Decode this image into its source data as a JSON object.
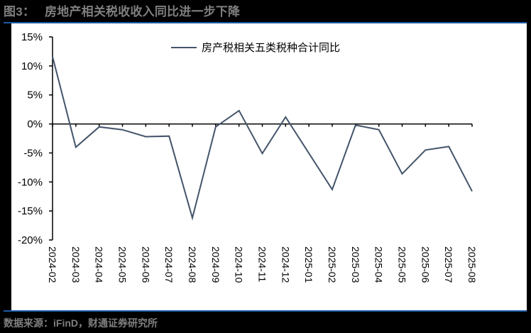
{
  "figure": {
    "number_label": "图3：",
    "title": "房地产相关税收收入同比进一步下降",
    "source": "数据来源：iFinD，财通证券研究所"
  },
  "colors": {
    "background": "#000000",
    "panel": "#ffffff",
    "rule": "#1a5ba6",
    "series_line": "#44546a",
    "caption_text": "#7f7f7f"
  },
  "chart_data": {
    "type": "line",
    "title": "房地产相关税收收入同比进一步下降",
    "xlabel": "",
    "ylabel": "",
    "ylim": [
      -20,
      15
    ],
    "yticks": [
      15,
      10,
      5,
      0,
      -5,
      -10,
      -15,
      -20
    ],
    "ytick_labels": [
      "15%",
      "10%",
      "5%",
      "0%",
      "-5%",
      "-10%",
      "-15%",
      "-20%"
    ],
    "grid": false,
    "legend_position": "top-center",
    "categories": [
      "2024-02",
      "2024-03",
      "2024-04",
      "2024-05",
      "2024-06",
      "2024-07",
      "2024-08",
      "2024-09",
      "2024-10",
      "2024-11",
      "2024-12",
      "2025-01",
      "2025-02",
      "2025-03",
      "2025-04",
      "2025-05",
      "2025-06",
      "2025-07",
      "2025-08"
    ],
    "series": [
      {
        "name": "房产税相关五类税种合计同比",
        "unit": "%",
        "values": [
          11.6,
          -4.0,
          -0.5,
          -1.0,
          -2.2,
          -2.1,
          -16.2,
          -0.5,
          2.3,
          -5.1,
          1.2,
          null,
          -11.3,
          -0.2,
          -1.0,
          -8.6,
          -4.5,
          -3.9,
          -11.6
        ]
      }
    ]
  }
}
